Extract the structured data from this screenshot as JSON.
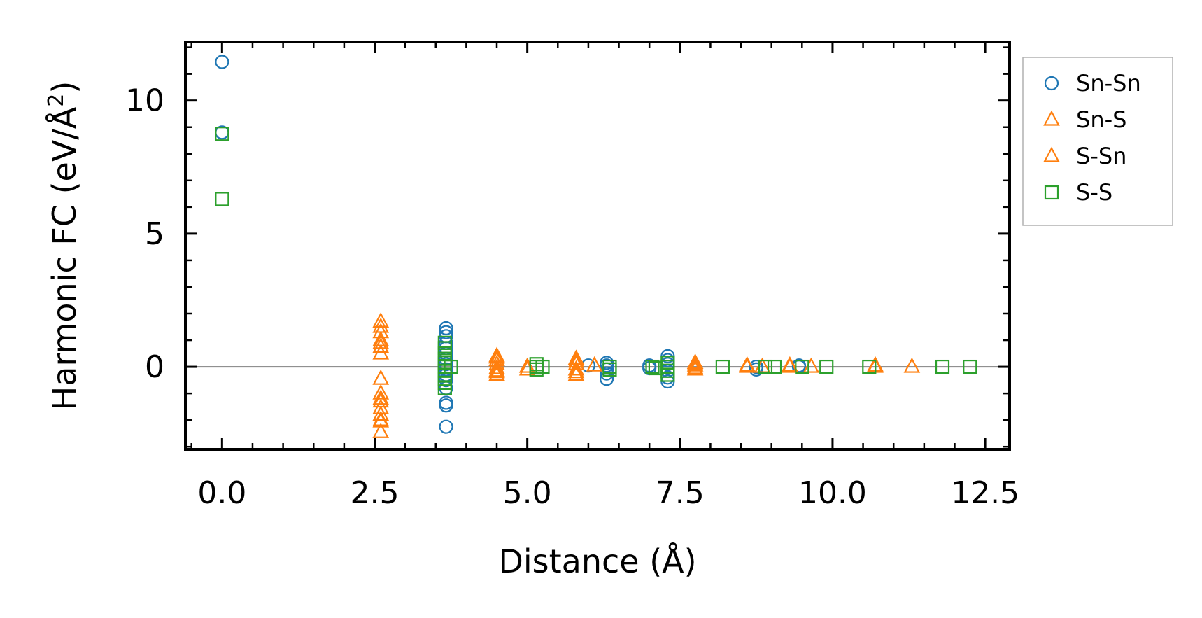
{
  "chart_data": {
    "type": "scatter",
    "title": "",
    "xlabel": "Distance (Å)",
    "ylabel": "Harmonic FC (eV/Å²)",
    "ylabel_main": "Harmonic FC (eV/Å",
    "ylabel_sup": "2",
    "ylabel_end": ")",
    "xlim": [
      -0.6,
      12.9
    ],
    "ylim": [
      -3.1,
      12.2
    ],
    "xticks": [
      0.0,
      2.5,
      5.0,
      7.5,
      10.0,
      12.5
    ],
    "xtick_labels": [
      "0.0",
      "2.5",
      "5.0",
      "7.5",
      "10.0",
      "12.5"
    ],
    "yticks": [
      0,
      5,
      10
    ],
    "ytick_labels": [
      "0",
      "5",
      "10"
    ],
    "x_minor_step": 0.5,
    "y_minor_step": 1,
    "zero_line": true,
    "grid": false,
    "legend_position": "outside-right-top",
    "series": [
      {
        "name": "Sn-Sn",
        "marker": "circle",
        "color": "#1f77b4",
        "points": [
          [
            0.0,
            11.45
          ],
          [
            0.0,
            8.8
          ],
          [
            3.67,
            1.45
          ],
          [
            3.67,
            1.3
          ],
          [
            3.67,
            1.15
          ],
          [
            3.67,
            0.9
          ],
          [
            3.67,
            0.7
          ],
          [
            3.67,
            0.5
          ],
          [
            3.67,
            0.3
          ],
          [
            3.67,
            0.1
          ],
          [
            3.67,
            -0.1
          ],
          [
            3.67,
            -0.3
          ],
          [
            3.67,
            -0.5
          ],
          [
            3.67,
            -0.8
          ],
          [
            3.67,
            -1.35
          ],
          [
            3.67,
            -1.45
          ],
          [
            3.67,
            -2.25
          ],
          [
            6.0,
            0.05
          ],
          [
            6.3,
            0.15
          ],
          [
            6.3,
            0.05
          ],
          [
            6.3,
            -0.1
          ],
          [
            6.3,
            -0.25
          ],
          [
            6.3,
            -0.45
          ],
          [
            7.0,
            0.05
          ],
          [
            7.0,
            -0.05
          ],
          [
            7.3,
            0.4
          ],
          [
            7.3,
            0.25
          ],
          [
            7.3,
            0.1
          ],
          [
            7.3,
            -0.15
          ],
          [
            7.3,
            -0.4
          ],
          [
            7.3,
            -0.55
          ],
          [
            8.75,
            0.0
          ],
          [
            8.75,
            -0.1
          ],
          [
            9.45,
            0.0
          ],
          [
            9.45,
            0.05
          ]
        ]
      },
      {
        "name": "Sn-S",
        "marker": "triangle",
        "color": "#ff7f0e",
        "points": [
          [
            2.6,
            1.7
          ],
          [
            2.6,
            1.3
          ],
          [
            2.6,
            1.0
          ],
          [
            2.6,
            0.75
          ],
          [
            2.6,
            0.5
          ],
          [
            2.6,
            -0.45
          ],
          [
            2.6,
            -1.0
          ],
          [
            2.6,
            -1.3
          ],
          [
            2.6,
            -1.55
          ],
          [
            2.6,
            -1.8
          ],
          [
            2.6,
            -2.05
          ],
          [
            2.6,
            -2.45
          ],
          [
            4.5,
            0.4
          ],
          [
            4.5,
            0.25
          ],
          [
            4.5,
            0.1
          ],
          [
            4.5,
            -0.05
          ],
          [
            4.5,
            -0.2
          ],
          [
            4.5,
            -0.3
          ],
          [
            5.0,
            0.0
          ],
          [
            5.0,
            -0.1
          ],
          [
            5.8,
            0.3
          ],
          [
            5.8,
            0.1
          ],
          [
            5.8,
            -0.1
          ],
          [
            5.8,
            -0.3
          ],
          [
            6.1,
            0.05
          ],
          [
            7.75,
            0.15
          ],
          [
            7.75,
            0.05
          ],
          [
            7.75,
            -0.05
          ],
          [
            8.6,
            0.0
          ],
          [
            8.85,
            0.0
          ],
          [
            9.3,
            0.05
          ],
          [
            9.65,
            0.0
          ],
          [
            10.7,
            0.0
          ],
          [
            11.3,
            0.0
          ]
        ]
      },
      {
        "name": "S-Sn",
        "marker": "triangle",
        "color": "#ff7f0e",
        "points": [
          [
            2.6,
            1.5
          ],
          [
            2.6,
            0.9
          ],
          [
            2.6,
            -1.2
          ],
          [
            2.6,
            -2.0
          ],
          [
            4.5,
            0.35
          ],
          [
            4.5,
            -0.15
          ],
          [
            5.8,
            0.2
          ],
          [
            5.8,
            -0.2
          ],
          [
            7.75,
            0.1
          ],
          [
            7.75,
            -0.1
          ],
          [
            8.6,
            0.05
          ],
          [
            9.3,
            0.0
          ],
          [
            10.7,
            0.05
          ]
        ]
      },
      {
        "name": "S-S",
        "marker": "square",
        "color": "#2ca02c",
        "points": [
          [
            0.0,
            8.75
          ],
          [
            0.0,
            6.3
          ],
          [
            3.65,
            0.9
          ],
          [
            3.65,
            0.7
          ],
          [
            3.65,
            0.5
          ],
          [
            3.65,
            0.3
          ],
          [
            3.65,
            0.15
          ],
          [
            3.65,
            0.0
          ],
          [
            3.65,
            -0.15
          ],
          [
            3.65,
            -0.3
          ],
          [
            3.65,
            -0.45
          ],
          [
            3.65,
            -0.6
          ],
          [
            3.65,
            -0.8
          ],
          [
            3.75,
            0.0
          ],
          [
            5.15,
            0.1
          ],
          [
            5.15,
            0.0
          ],
          [
            5.15,
            -0.1
          ],
          [
            5.25,
            0.0
          ],
          [
            6.35,
            0.0
          ],
          [
            6.35,
            -0.1
          ],
          [
            7.05,
            0.0
          ],
          [
            7.1,
            -0.05
          ],
          [
            7.3,
            0.15
          ],
          [
            7.3,
            0.0
          ],
          [
            7.3,
            -0.15
          ],
          [
            7.3,
            -0.3
          ],
          [
            8.2,
            0.0
          ],
          [
            8.9,
            0.0
          ],
          [
            9.05,
            0.0
          ],
          [
            9.5,
            0.0
          ],
          [
            9.9,
            0.0
          ],
          [
            10.6,
            0.0
          ],
          [
            11.8,
            0.0
          ],
          [
            12.25,
            0.0
          ]
        ]
      }
    ]
  }
}
